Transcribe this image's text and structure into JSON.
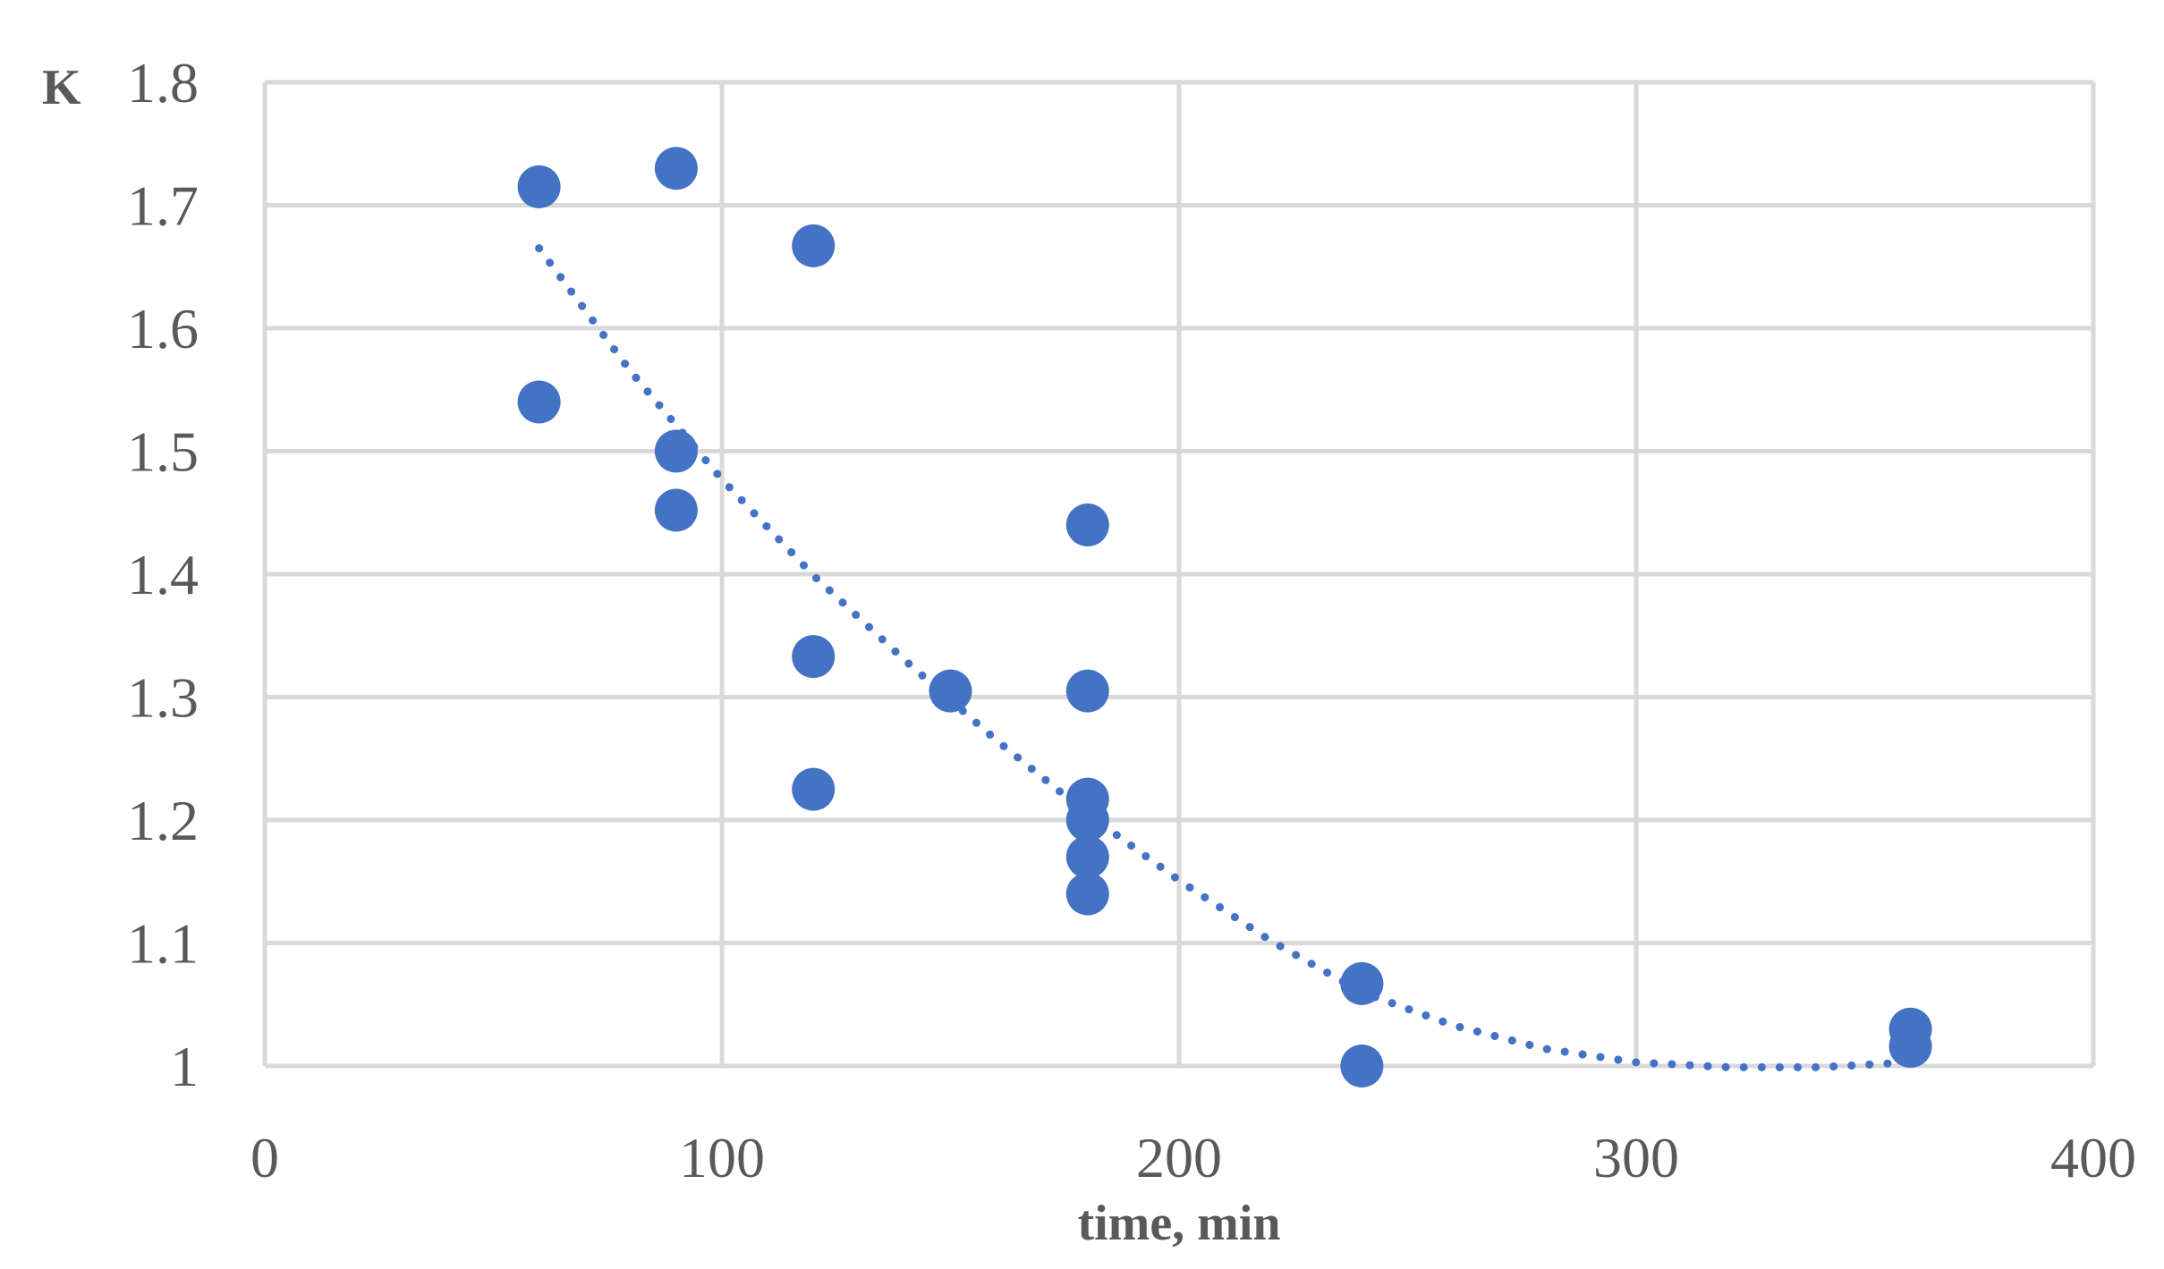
{
  "chart_data": {
    "type": "scatter",
    "title": "",
    "xlabel": "time, min",
    "ylabel": "K",
    "xlim": [
      0,
      400
    ],
    "ylim": [
      1,
      1.8
    ],
    "x_ticks": [
      "0",
      "100",
      "200",
      "300",
      "400"
    ],
    "y_ticks": [
      "1",
      "1.1",
      "1.2",
      "1.3",
      "1.4",
      "1.5",
      "1.6",
      "1.7",
      "1.8"
    ],
    "grid": true,
    "legend": "none",
    "colors": {
      "points": "#4472C4",
      "trendline": "#4472C4",
      "grid": "#D9D9D9",
      "text": "#595959"
    },
    "series": [
      {
        "x": [
          60,
          60,
          90,
          90,
          90,
          120,
          120,
          120,
          150,
          180,
          180,
          180,
          180,
          180,
          180,
          240,
          240,
          360,
          360
        ],
        "y": [
          1.715,
          1.54,
          1.73,
          1.5,
          1.452,
          1.667,
          1.333,
          1.225,
          1.305,
          1.44,
          1.305,
          1.217,
          1.2,
          1.17,
          1.14,
          1.067,
          1.0,
          1.03,
          1.016
        ]
      }
    ],
    "trendline": {
      "style": "dotted",
      "x": [
        60,
        80,
        100,
        120,
        140,
        160,
        180,
        200,
        220,
        240,
        260,
        280,
        300,
        320,
        340,
        360
      ],
      "y": [
        1.665,
        1.565,
        1.477,
        1.399,
        1.33,
        1.265,
        1.205,
        1.151,
        1.102,
        1.06,
        1.033,
        1.014,
        1.003,
        0.999,
        0.999,
        1.003
      ]
    }
  }
}
